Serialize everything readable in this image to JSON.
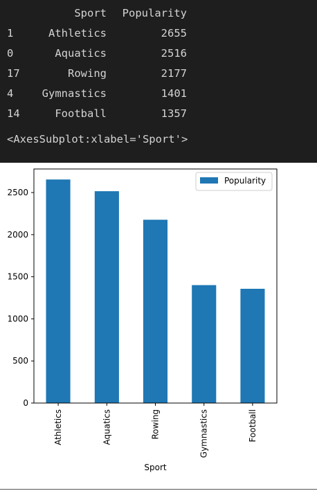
{
  "dataframe": {
    "columns": [
      "",
      "Sport",
      "Popularity"
    ],
    "rows": [
      {
        "index": "1",
        "sport": "Athletics",
        "popularity": "2655"
      },
      {
        "index": "0",
        "sport": "Aquatics",
        "popularity": "2516"
      },
      {
        "index": "17",
        "sport": "Rowing",
        "popularity": "2177"
      },
      {
        "index": "4",
        "sport": "Gymnastics",
        "popularity": "1401"
      },
      {
        "index": "14",
        "sport": "Football",
        "popularity": "1357"
      }
    ]
  },
  "repr_text": "<AxesSubplot:xlabel='Sport'>",
  "chart_data": {
    "type": "bar",
    "categories": [
      "Athletics",
      "Aquatics",
      "Rowing",
      "Gymnastics",
      "Football"
    ],
    "series": [
      {
        "name": "Popularity",
        "values": [
          2655,
          2516,
          2177,
          1401,
          1357
        ]
      }
    ],
    "xlabel": "Sport",
    "ylabel": "",
    "ylim": [
      0,
      2780
    ],
    "yticks": [
      0,
      500,
      1000,
      1500,
      2000,
      2500
    ],
    "grid": false,
    "legend": "top-right",
    "colors": {
      "bar": "#1f77b4"
    }
  }
}
